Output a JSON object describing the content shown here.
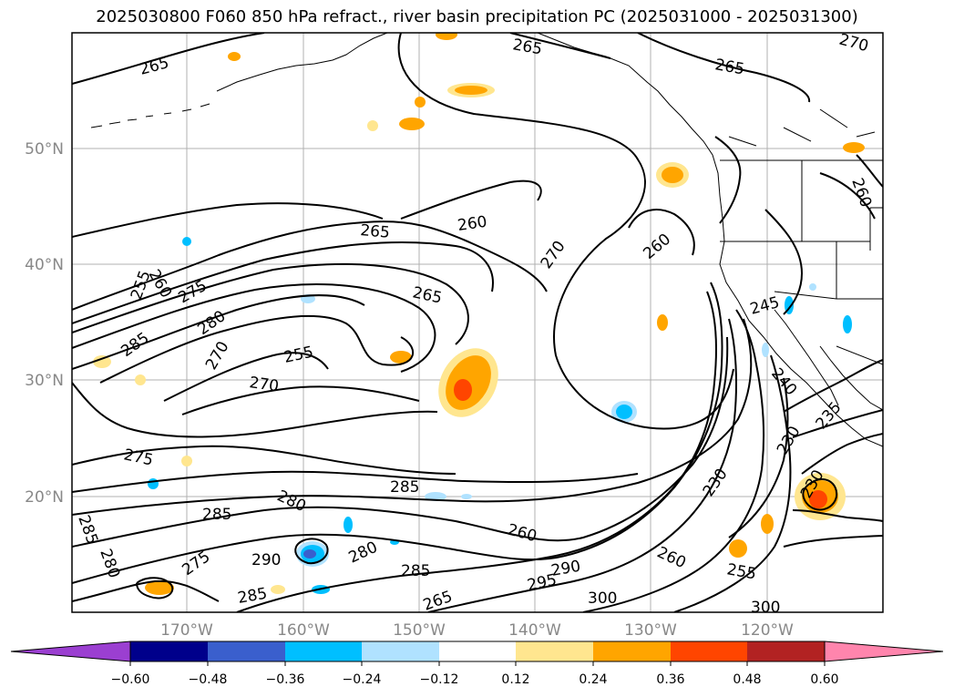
{
  "title": "2025030800 F060 850 hPa refract., river basin precipitation PC (2025031000 - 2025031300)",
  "map": {
    "lat_labels": [
      "50°N",
      "40°N",
      "30°N",
      "20°N"
    ],
    "lon_labels": [
      "170°W",
      "160°W",
      "150°W",
      "140°W",
      "130°W",
      "120°W"
    ],
    "contour_labels": [
      "265",
      "265",
      "265",
      "270",
      "260",
      "265",
      "260",
      "270",
      "260",
      "275",
      "285",
      "255",
      "280",
      "260",
      "265",
      "255",
      "270",
      "270",
      "275",
      "285",
      "280",
      "285",
      "285",
      "280",
      "275",
      "290",
      "280",
      "285",
      "285",
      "260",
      "290",
      "295",
      "300",
      "265",
      "260",
      "255",
      "245",
      "240",
      "235",
      "230",
      "230",
      "300"
    ],
    "gridlines": true,
    "projection_note_visible": false
  },
  "colorbar": {
    "tick_labels": [
      "−0.60",
      "−0.48",
      "−0.36",
      "−0.24",
      "−0.12",
      "0.12",
      "0.24",
      "0.36",
      "0.48",
      "0.60"
    ],
    "colors": [
      "#9b3fd1",
      "#00008b",
      "#3a5fcd",
      "#00bfff",
      "#b0e2ff",
      "#ffffff",
      "#ffe68f",
      "#ffa500",
      "#ff4500",
      "#b22222",
      "#ff85ad"
    ]
  }
}
